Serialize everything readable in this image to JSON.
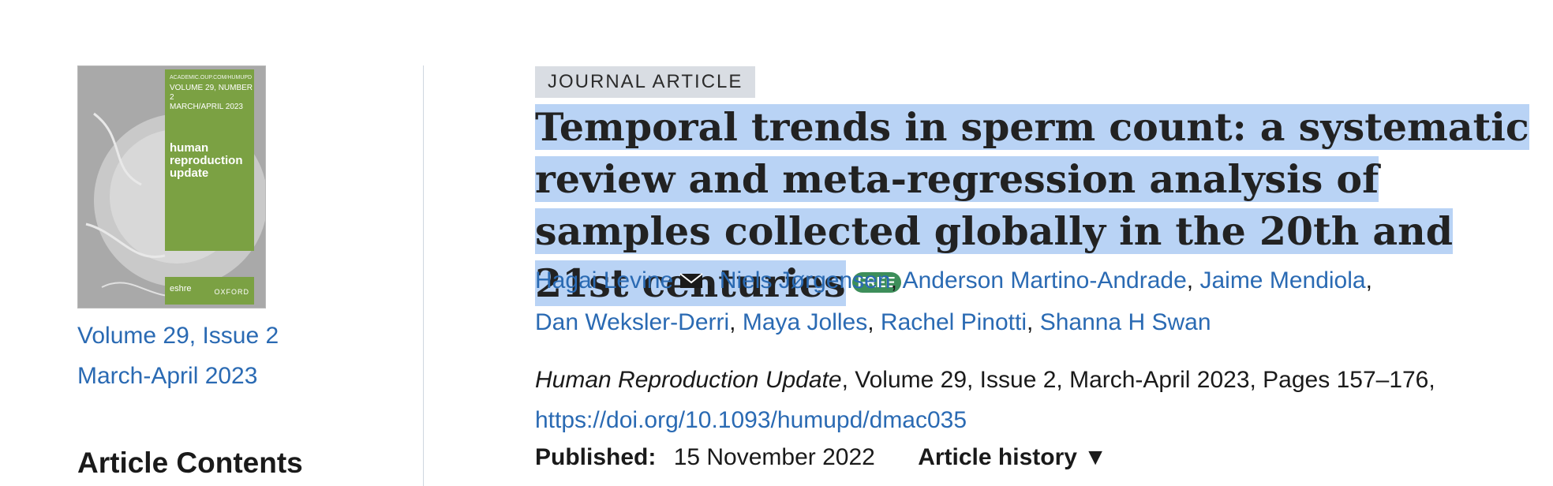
{
  "cover": {
    "meta": "ACADEMIC.OUP.COM/HUMUPD",
    "volume_line1": "VOLUME 29, NUMBER 2",
    "volume_line2": "MARCH/APRIL 2023",
    "title_line1": "human",
    "title_line2": "reproduction",
    "title_line3": "update",
    "logo_left": "eshre",
    "logo_right": "OXFORD"
  },
  "issue": {
    "volume_issue": "Volume 29, Issue 2",
    "date": "March-April 2023"
  },
  "article_contents": "Article Contents",
  "badge": "JOURNAL ARTICLE",
  "title": "Temporal trends in sperm count: a systematic review and meta-regression analysis of samples collected globally in the 20th and 21st centuries",
  "free_badge": "FREE",
  "authors": [
    "Hagai Levine",
    "Niels Jørgensen",
    "Anderson Martino-Andrade",
    "Jaime Mendiola",
    "Dan Weksler-Derri",
    "Maya Jolles",
    "Rachel Pinotti",
    "Shanna H Swan"
  ],
  "citation": {
    "journal": "Human Reproduction Update",
    "details": ", Volume 29, Issue 2, March-April 2023, Pages 157–176,",
    "doi": "https://doi.org/10.1093/humupd/dmac035"
  },
  "published": {
    "label": "Published:",
    "date": "15 November 2022",
    "history": "Article history ▼"
  }
}
